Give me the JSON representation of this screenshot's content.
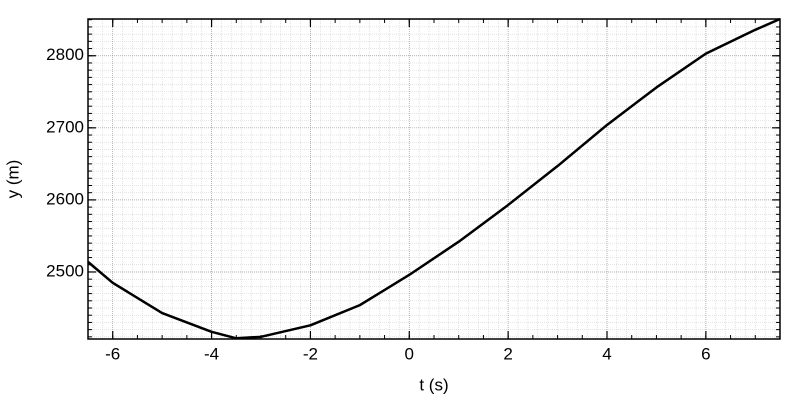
{
  "chart_data": {
    "type": "line",
    "x_label": "t (s)",
    "y_label": "y (m)",
    "x": [
      -6.5,
      -6,
      -5,
      -4,
      -3.5,
      -3,
      -2,
      -1,
      0,
      1,
      2,
      3,
      4,
      5,
      6,
      7,
      7.5
    ],
    "series": [
      {
        "color": "#000000",
        "values": [
          2514,
          2485,
          2443,
          2417,
          2408,
          2410,
          2426,
          2454,
          2496,
          2542,
          2593,
          2647,
          2704,
          2756,
          2803,
          2836,
          2851
        ]
      }
    ],
    "xlim": [
      -6.5,
      7.5
    ],
    "ylim": [
      2407,
      2851
    ],
    "xticks": [
      -6,
      -4,
      -2,
      0,
      2,
      4,
      6
    ],
    "yticks": [
      2500,
      2600,
      2700,
      2800
    ],
    "grid": true
  }
}
